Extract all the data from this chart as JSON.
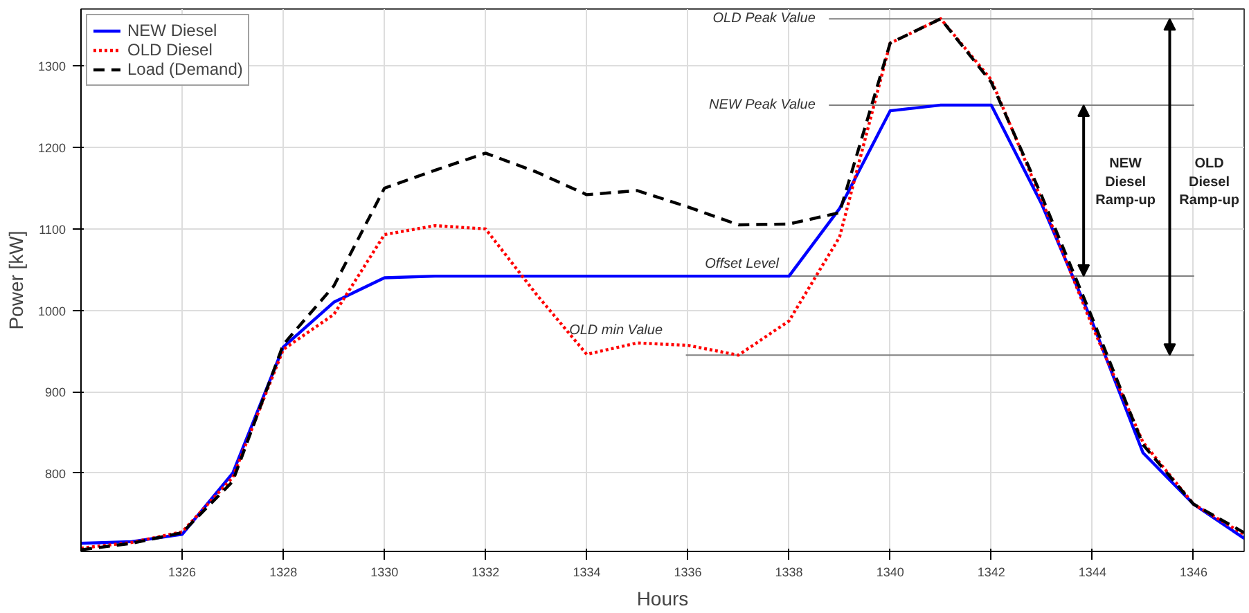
{
  "chart_data": {
    "type": "line",
    "xlabel": "Hours",
    "ylabel": "Power [kW]",
    "x": [
      1324,
      1325,
      1326,
      1327,
      1328,
      1329,
      1330,
      1331,
      1332,
      1333,
      1334,
      1335,
      1336,
      1337,
      1338,
      1339,
      1340,
      1341,
      1342,
      1343,
      1344,
      1345,
      1346,
      1347
    ],
    "series": [
      {
        "name": "NEW Diesel",
        "color": "#0000ff",
        "line_style": "solid",
        "values": [
          714,
          716,
          725,
          800,
          955,
          1010,
          1040,
          1042,
          1042,
          1042,
          1042,
          1042,
          1042,
          1042,
          1042,
          1125,
          1245,
          1252,
          1252,
          1130,
          985,
          825,
          762,
          720
        ]
      },
      {
        "name": "OLD Diesel",
        "color": "#ff0000",
        "line_style": "dotted",
        "values": [
          708,
          715,
          728,
          795,
          952,
          995,
          1093,
          1104,
          1100,
          1020,
          946,
          960,
          957,
          945,
          987,
          1090,
          1328,
          1358,
          1283,
          1135,
          980,
          838,
          762,
          725
        ]
      },
      {
        "name": "Load (Demand)",
        "color": "#000000",
        "line_style": "dashed",
        "values": [
          706,
          714,
          727,
          790,
          958,
          1030,
          1150,
          1172,
          1193,
          1170,
          1142,
          1147,
          1127,
          1105,
          1106,
          1120,
          1328,
          1358,
          1280,
          1140,
          990,
          835,
          762,
          727
        ]
      }
    ],
    "xlim": [
      1324,
      1347
    ],
    "xticks": [
      1326,
      1328,
      1330,
      1332,
      1334,
      1336,
      1338,
      1340,
      1342,
      1344,
      1346
    ],
    "ylim": [
      704,
      1370
    ],
    "yticks": [
      800,
      900,
      1000,
      1100,
      1200,
      1300
    ],
    "ref_lines": [
      {
        "axis": "y",
        "value": 1358,
        "label": "OLD Peak Value",
        "color": "#808080"
      },
      {
        "axis": "y",
        "value": 1252,
        "label": "NEW Peak Value",
        "color": "#808080"
      },
      {
        "axis": "y",
        "value": 1042,
        "label": "Offset Level",
        "color": "#808080"
      },
      {
        "axis": "y",
        "value": 945,
        "label": "OLD min Value",
        "color": "#808080"
      }
    ],
    "annotations": [
      "NEW Diesel Ramp-up",
      "OLD Diesel Ramp-up"
    ],
    "grid": true,
    "legend": "top left"
  }
}
